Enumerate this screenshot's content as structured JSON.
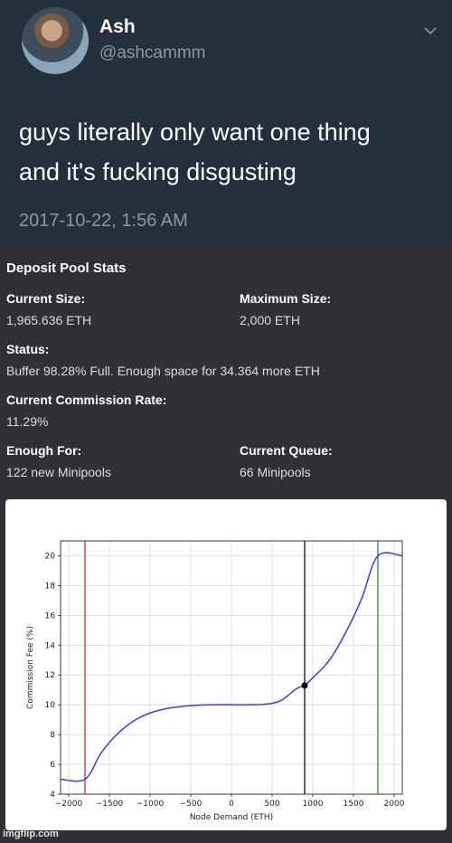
{
  "tweet": {
    "display_name": "Ash",
    "handle": "@ashcammm",
    "text_line1": "guys literally only want one thing",
    "text_line2": "and it's fucking disgusting",
    "timestamp": "2017-10-22, 1:56 AM",
    "menu_icon": "chevron-down-icon"
  },
  "deposit_pool": {
    "title": "Deposit Pool Stats",
    "current_size_label": "Current Size:",
    "current_size_value": "1,965.636 ETH",
    "maximum_size_label": "Maximum Size:",
    "maximum_size_value": "2,000 ETH",
    "status_label": "Status:",
    "status_value": "Buffer 98.28% Full. Enough space for 34.364 more ETH",
    "commission_label": "Current Commission Rate:",
    "commission_value": "11.29%",
    "enough_for_label": "Enough For:",
    "enough_for_value": "122 new Minipools",
    "queue_label": "Current Queue:",
    "queue_value": "66 Minipools"
  },
  "chart_data": {
    "type": "line",
    "title": "",
    "xlabel": "Node Demand (ETH)",
    "ylabel": "Commission Fee (%)",
    "xlim": [
      -2100,
      2100
    ],
    "ylim": [
      4,
      21
    ],
    "x_ticks": [
      -2000,
      -1500,
      -1000,
      -500,
      0,
      500,
      1000,
      1500,
      2000
    ],
    "x_tick_labels": [
      "−2000",
      "−1500",
      "−1000",
      "−500",
      "0",
      "500",
      "1000",
      "1500",
      "2000"
    ],
    "y_ticks": [
      4,
      6,
      8,
      10,
      12,
      14,
      16,
      18,
      20
    ],
    "y_tick_labels": [
      "4",
      "6",
      "8",
      "10",
      "12",
      "14",
      "16",
      "18",
      "20"
    ],
    "grid": true,
    "series": [
      {
        "color": "#3b3bf0",
        "x": [
          -2100,
          -1800,
          -1600,
          -1400,
          -1200,
          -1000,
          -800,
          -600,
          -400,
          -200,
          0,
          200,
          400,
          600,
          800,
          900,
          1000,
          1200,
          1400,
          1600,
          1800,
          2100
        ],
        "y": [
          5.0,
          5.0,
          6.78,
          8.05,
          8.92,
          9.45,
          9.74,
          9.89,
          9.97,
          10.0,
          10.0,
          10.0,
          10.03,
          10.26,
          11.08,
          11.29,
          11.81,
          12.96,
          14.8,
          17.11,
          20.0,
          20.0
        ]
      }
    ],
    "vlines": [
      {
        "x": -1800,
        "color": "#e8211d"
      },
      {
        "x": 900,
        "color": "#111111"
      },
      {
        "x": 1800,
        "color": "#2a8a2a"
      }
    ],
    "marker": {
      "x": 900,
      "y": 11.29,
      "color": "#000000"
    }
  },
  "watermark": "imgflip.com"
}
